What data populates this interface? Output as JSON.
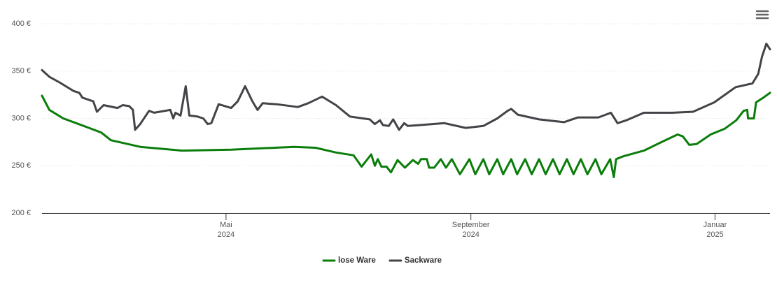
{
  "chart_data": {
    "type": "line",
    "xlim": [
      2024.082,
      2025.075
    ],
    "ylim": [
      200,
      400
    ],
    "yticks": [
      {
        "value": 200,
        "label": "200 €"
      },
      {
        "value": 250,
        "label": "250 €"
      },
      {
        "value": 300,
        "label": "300 €"
      },
      {
        "value": 350,
        "label": "350 €"
      },
      {
        "value": 400,
        "label": "400 €"
      }
    ],
    "xticks": [
      {
        "value": 2024.333,
        "label": "Mai",
        "sublabel": "2024"
      },
      {
        "value": 2024.667,
        "label": "September",
        "sublabel": "2024"
      },
      {
        "value": 2025.0,
        "label": "Januar",
        "sublabel": "2025"
      }
    ],
    "grid": true,
    "legend": "bottom",
    "series": [
      {
        "name": "lose Ware",
        "color": "#0a7d0a",
        "x": [
          2024.082,
          2024.092,
          2024.111,
          2024.139,
          2024.163,
          2024.176,
          2024.216,
          2024.273,
          2024.34,
          2024.426,
          2024.455,
          2024.483,
          2024.507,
          2024.518,
          2024.531,
          2024.536,
          2024.54,
          2024.545,
          2024.552,
          2024.558,
          2024.567,
          2024.577,
          2024.588,
          2024.595,
          2024.599,
          2024.607,
          2024.61,
          2024.617,
          2024.626,
          2024.633,
          2024.641,
          2024.652,
          2024.665,
          2024.673,
          2024.684,
          2024.692,
          2024.703,
          2024.711,
          2024.722,
          2024.73,
          2024.741,
          2024.75,
          2024.76,
          2024.769,
          2024.779,
          2024.788,
          2024.798,
          2024.807,
          2024.817,
          2024.826,
          2024.837,
          2024.845,
          2024.857,
          2024.862,
          2024.865,
          2024.875,
          2024.903,
          2024.927,
          2024.949,
          2024.956,
          2024.965,
          2024.975,
          2024.994,
          2025.013,
          2025.029,
          2025.039,
          2025.044,
          2025.045,
          2025.053,
          2025.056,
          2025.066,
          2025.075
        ],
        "values": [
          324,
          309,
          300,
          292,
          285,
          277,
          270,
          266,
          267,
          270,
          269,
          264,
          261,
          249,
          262,
          250,
          257,
          249,
          249,
          243,
          256,
          248,
          256,
          252,
          257,
          257,
          248,
          248,
          257,
          248,
          257,
          241,
          257,
          241,
          257,
          241,
          257,
          241,
          257,
          241,
          257,
          241,
          257,
          241,
          257,
          241,
          257,
          241,
          257,
          241,
          257,
          241,
          257,
          238,
          257,
          260,
          266,
          275,
          283,
          281,
          272,
          273,
          283,
          289,
          298,
          308,
          309,
          300,
          300,
          317,
          322,
          327
        ]
      },
      {
        "name": "Sackware",
        "color": "#434348",
        "x": [
          2024.082,
          2024.092,
          2024.106,
          2024.125,
          2024.133,
          2024.137,
          2024.152,
          2024.157,
          2024.166,
          2024.185,
          2024.192,
          2024.201,
          2024.206,
          2024.209,
          2024.216,
          2024.228,
          2024.235,
          2024.257,
          2024.261,
          2024.264,
          2024.271,
          2024.278,
          2024.283,
          2024.294,
          2024.302,
          2024.308,
          2024.313,
          2024.323,
          2024.34,
          2024.349,
          2024.359,
          2024.369,
          2024.376,
          2024.383,
          2024.402,
          2024.431,
          2024.445,
          2024.464,
          2024.483,
          2024.502,
          2024.529,
          2024.536,
          2024.543,
          2024.547,
          2024.555,
          2024.561,
          2024.569,
          2024.576,
          2024.581,
          2024.598,
          2024.631,
          2024.66,
          2024.684,
          2024.703,
          2024.717,
          2024.722,
          2024.731,
          2024.76,
          2024.794,
          2024.813,
          2024.841,
          2024.858,
          2024.867,
          2024.879,
          2024.903,
          2024.942,
          2024.97,
          2024.999,
          2025.028,
          2025.051,
          2025.059,
          2025.064,
          2025.07,
          2025.075
        ],
        "values": [
          351,
          344,
          338,
          329,
          327,
          322,
          318,
          307,
          314,
          311,
          314,
          313,
          309,
          288,
          294,
          308,
          306,
          309,
          300,
          306,
          303,
          334,
          303,
          302,
          300,
          294,
          295,
          315,
          311,
          318,
          334,
          318,
          309,
          316,
          315,
          312,
          316,
          323,
          314,
          302,
          299,
          294,
          298,
          293,
          292,
          299,
          288,
          295,
          292,
          293,
          295,
          290,
          292,
          300,
          308,
          310,
          304,
          299,
          296,
          301,
          301,
          306,
          295,
          298,
          306,
          306,
          307,
          317,
          333,
          337,
          347,
          365,
          379,
          373
        ]
      }
    ]
  }
}
